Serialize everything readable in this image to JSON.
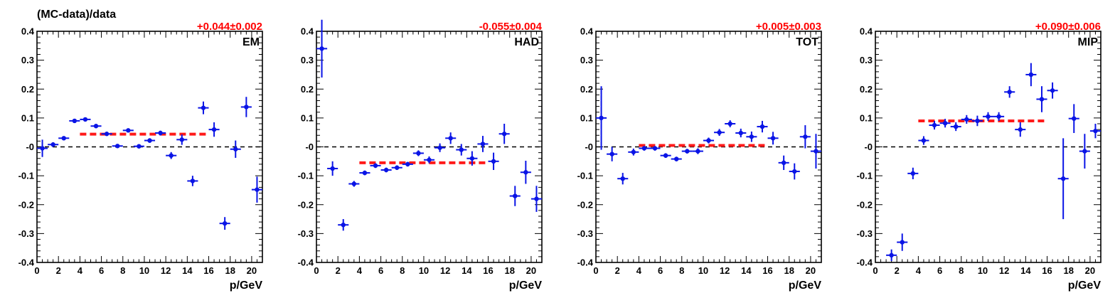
{
  "figure": {
    "ylabel": "(MC-data)/data",
    "xlabel": "p/GeV"
  },
  "colors": {
    "points": "#0a14e6",
    "fit": "#ff1a1a",
    "reference": "#000000"
  },
  "chart_data": [
    {
      "type": "scatter",
      "panel_label": "EM",
      "fit_text": "+0.044±0.002",
      "fit_value": 0.044,
      "fit_range": [
        4,
        16
      ],
      "xlim": [
        0,
        21
      ],
      "ylim": [
        -0.4,
        0.4
      ],
      "xticks": [
        "0",
        "2",
        "4",
        "6",
        "8",
        "10",
        "12",
        "14",
        "16",
        "18",
        "20"
      ],
      "yticks": [
        "-0.4",
        "-0.3",
        "-0.2",
        "-0.1",
        "-0",
        "0.1",
        "0.2",
        "0.3",
        "0.4"
      ],
      "points": [
        {
          "x": 0.5,
          "y": -0.005,
          "err": 0.03
        },
        {
          "x": 1.5,
          "y": 0.008,
          "err": 0.008
        },
        {
          "x": 2.5,
          "y": 0.03,
          "err": 0.006
        },
        {
          "x": 3.5,
          "y": 0.09,
          "err": 0.006
        },
        {
          "x": 4.5,
          "y": 0.095,
          "err": 0.006
        },
        {
          "x": 5.5,
          "y": 0.072,
          "err": 0.006
        },
        {
          "x": 6.5,
          "y": 0.045,
          "err": 0.005
        },
        {
          "x": 7.5,
          "y": 0.003,
          "err": 0.005
        },
        {
          "x": 8.5,
          "y": 0.057,
          "err": 0.006
        },
        {
          "x": 9.5,
          "y": 0.002,
          "err": 0.005
        },
        {
          "x": 10.5,
          "y": 0.022,
          "err": 0.008
        },
        {
          "x": 11.5,
          "y": 0.048,
          "err": 0.008
        },
        {
          "x": 12.5,
          "y": -0.03,
          "err": 0.012
        },
        {
          "x": 13.5,
          "y": 0.025,
          "err": 0.018
        },
        {
          "x": 14.5,
          "y": -0.118,
          "err": 0.018
        },
        {
          "x": 15.5,
          "y": 0.135,
          "err": 0.022
        },
        {
          "x": 16.5,
          "y": 0.06,
          "err": 0.025
        },
        {
          "x": 17.5,
          "y": -0.265,
          "err": 0.022
        },
        {
          "x": 18.5,
          "y": -0.008,
          "err": 0.03
        },
        {
          "x": 19.5,
          "y": 0.138,
          "err": 0.035
        },
        {
          "x": 20.5,
          "y": -0.148,
          "err": 0.045
        }
      ]
    },
    {
      "type": "scatter",
      "panel_label": "HAD",
      "fit_text": "-0.055±0.004",
      "fit_value": -0.055,
      "fit_range": [
        4,
        16
      ],
      "xlim": [
        0,
        21
      ],
      "ylim": [
        -0.4,
        0.4
      ],
      "xticks": [
        "0",
        "2",
        "4",
        "6",
        "8",
        "10",
        "12",
        "14",
        "16",
        "18",
        "20"
      ],
      "yticks": [
        "-0.4",
        "-0.3",
        "-0.2",
        "-0.1",
        "-0",
        "0.1",
        "0.2",
        "0.3",
        "0.4"
      ],
      "points": [
        {
          "x": 0.5,
          "y": 0.34,
          "err": 0.1
        },
        {
          "x": 1.5,
          "y": -0.075,
          "err": 0.025
        },
        {
          "x": 2.5,
          "y": -0.27,
          "err": 0.02
        },
        {
          "x": 3.5,
          "y": -0.128,
          "err": 0.01
        },
        {
          "x": 4.5,
          "y": -0.09,
          "err": 0.008
        },
        {
          "x": 5.5,
          "y": -0.065,
          "err": 0.008
        },
        {
          "x": 6.5,
          "y": -0.08,
          "err": 0.008
        },
        {
          "x": 7.5,
          "y": -0.072,
          "err": 0.008
        },
        {
          "x": 8.5,
          "y": -0.06,
          "err": 0.008
        },
        {
          "x": 9.5,
          "y": -0.022,
          "err": 0.01
        },
        {
          "x": 10.5,
          "y": -0.045,
          "err": 0.012
        },
        {
          "x": 11.5,
          "y": -0.003,
          "err": 0.015
        },
        {
          "x": 12.5,
          "y": 0.03,
          "err": 0.02
        },
        {
          "x": 13.5,
          "y": -0.01,
          "err": 0.02
        },
        {
          "x": 14.5,
          "y": -0.04,
          "err": 0.025
        },
        {
          "x": 15.5,
          "y": 0.01,
          "err": 0.028
        },
        {
          "x": 16.5,
          "y": -0.05,
          "err": 0.03
        },
        {
          "x": 17.5,
          "y": 0.045,
          "err": 0.035
        },
        {
          "x": 18.5,
          "y": -0.17,
          "err": 0.035
        },
        {
          "x": 19.5,
          "y": -0.088,
          "err": 0.04
        },
        {
          "x": 20.5,
          "y": -0.18,
          "err": 0.045
        }
      ]
    },
    {
      "type": "scatter",
      "panel_label": "TOT",
      "fit_text": "+0.005±0.003",
      "fit_value": 0.005,
      "fit_range": [
        4,
        16
      ],
      "xlim": [
        0,
        21
      ],
      "ylim": [
        -0.4,
        0.4
      ],
      "xticks": [
        "0",
        "2",
        "4",
        "6",
        "8",
        "10",
        "12",
        "14",
        "16",
        "18",
        "20"
      ],
      "yticks": [
        "-0.4",
        "-0.3",
        "-0.2",
        "-0.1",
        "-0",
        "0.1",
        "0.2",
        "0.3",
        "0.4"
      ],
      "points": [
        {
          "x": 0.5,
          "y": 0.1,
          "err": 0.11
        },
        {
          "x": 1.5,
          "y": -0.025,
          "err": 0.025
        },
        {
          "x": 2.5,
          "y": -0.11,
          "err": 0.02
        },
        {
          "x": 3.5,
          "y": -0.018,
          "err": 0.012
        },
        {
          "x": 4.5,
          "y": -0.005,
          "err": 0.008
        },
        {
          "x": 5.5,
          "y": -0.005,
          "err": 0.008
        },
        {
          "x": 6.5,
          "y": -0.03,
          "err": 0.008
        },
        {
          "x": 7.5,
          "y": -0.042,
          "err": 0.008
        },
        {
          "x": 8.5,
          "y": -0.015,
          "err": 0.008
        },
        {
          "x": 9.5,
          "y": -0.015,
          "err": 0.01
        },
        {
          "x": 10.5,
          "y": 0.022,
          "err": 0.01
        },
        {
          "x": 11.5,
          "y": 0.05,
          "err": 0.012
        },
        {
          "x": 12.5,
          "y": 0.08,
          "err": 0.012
        },
        {
          "x": 13.5,
          "y": 0.048,
          "err": 0.015
        },
        {
          "x": 14.5,
          "y": 0.035,
          "err": 0.018
        },
        {
          "x": 15.5,
          "y": 0.07,
          "err": 0.02
        },
        {
          "x": 16.5,
          "y": 0.03,
          "err": 0.022
        },
        {
          "x": 17.5,
          "y": -0.055,
          "err": 0.025
        },
        {
          "x": 18.5,
          "y": -0.085,
          "err": 0.028
        },
        {
          "x": 19.5,
          "y": 0.035,
          "err": 0.04
        },
        {
          "x": 20.5,
          "y": -0.015,
          "err": 0.06
        }
      ]
    },
    {
      "type": "scatter",
      "panel_label": "MIP",
      "fit_text": "+0.090±0.006",
      "fit_value": 0.09,
      "fit_range": [
        4,
        16
      ],
      "xlim": [
        0,
        21
      ],
      "ylim": [
        -0.4,
        0.4
      ],
      "xticks": [
        "0",
        "2",
        "4",
        "6",
        "8",
        "10",
        "12",
        "14",
        "16",
        "18",
        "20"
      ],
      "yticks": [
        "-0.4",
        "-0.3",
        "-0.2",
        "-0.1",
        "-0",
        "0.1",
        "0.2",
        "0.3",
        "0.4"
      ],
      "points": [
        {
          "x": 1.5,
          "y": -0.375,
          "err": 0.02
        },
        {
          "x": 2.5,
          "y": -0.33,
          "err": 0.03
        },
        {
          "x": 3.5,
          "y": -0.092,
          "err": 0.02
        },
        {
          "x": 4.5,
          "y": 0.022,
          "err": 0.015
        },
        {
          "x": 5.5,
          "y": 0.075,
          "err": 0.015
        },
        {
          "x": 6.5,
          "y": 0.082,
          "err": 0.015
        },
        {
          "x": 7.5,
          "y": 0.07,
          "err": 0.015
        },
        {
          "x": 8.5,
          "y": 0.095,
          "err": 0.015
        },
        {
          "x": 9.5,
          "y": 0.09,
          "err": 0.018
        },
        {
          "x": 10.5,
          "y": 0.105,
          "err": 0.015
        },
        {
          "x": 11.5,
          "y": 0.105,
          "err": 0.015
        },
        {
          "x": 12.5,
          "y": 0.19,
          "err": 0.02
        },
        {
          "x": 13.5,
          "y": 0.06,
          "err": 0.025
        },
        {
          "x": 14.5,
          "y": 0.25,
          "err": 0.04
        },
        {
          "x": 15.5,
          "y": 0.165,
          "err": 0.045
        },
        {
          "x": 16.5,
          "y": 0.195,
          "err": 0.028
        },
        {
          "x": 17.5,
          "y": -0.11,
          "err": 0.14
        },
        {
          "x": 18.5,
          "y": 0.098,
          "err": 0.05
        },
        {
          "x": 19.5,
          "y": -0.015,
          "err": 0.06
        },
        {
          "x": 20.5,
          "y": 0.055,
          "err": 0.025
        }
      ]
    }
  ]
}
